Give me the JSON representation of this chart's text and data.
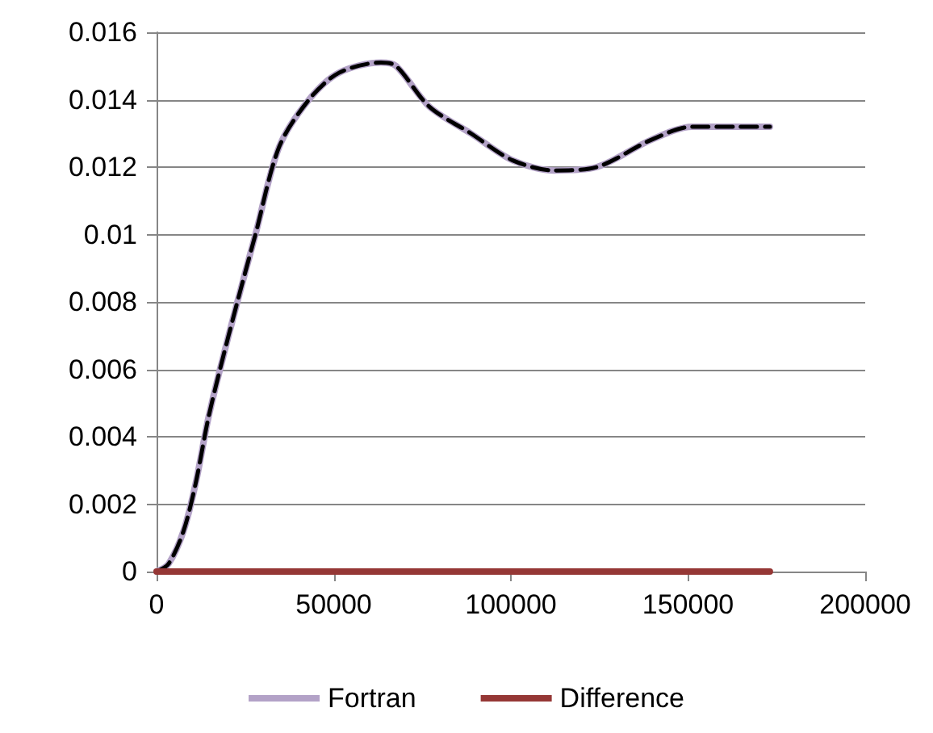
{
  "chart_data": {
    "type": "line",
    "x": [
      0,
      3400,
      7600,
      11000,
      14500,
      17900,
      22800,
      27900,
      34600,
      43000,
      51500,
      63300,
      67600,
      76900,
      88700,
      100500,
      112300,
      124200,
      139400,
      151200,
      163000,
      173100
    ],
    "series": [
      {
        "name": "Fortran",
        "color": "#b3a2c7",
        "line_style": "solid",
        "values": [
          0,
          0.00023,
          0.0012,
          0.0026,
          0.0045,
          0.006,
          0.008,
          0.01,
          0.0126,
          0.014,
          0.0148,
          0.0151,
          0.015,
          0.0138,
          0.013,
          0.0122,
          0.0119,
          0.012,
          0.0128,
          0.0132,
          0.0132,
          0.0132
        ]
      },
      {
        "color": "#000000",
        "line_style": "dashed",
        "values": [
          0,
          0.00023,
          0.0012,
          0.0026,
          0.0045,
          0.006,
          0.008,
          0.01,
          0.0126,
          0.014,
          0.0148,
          0.0151,
          0.015,
          0.0138,
          0.013,
          0.0122,
          0.0119,
          0.012,
          0.0128,
          0.0132,
          0.0132,
          0.0132
        ]
      },
      {
        "name": "Difference",
        "color": "#953735",
        "line_style": "solid",
        "values": [
          0,
          0,
          0,
          0,
          0,
          0,
          0,
          0,
          0,
          0,
          0,
          0,
          0,
          0,
          0,
          0,
          0,
          0,
          0,
          0,
          0,
          0
        ]
      }
    ],
    "xlim": [
      0,
      200000
    ],
    "xticks": [
      0,
      50000,
      100000,
      150000,
      200000
    ],
    "ylim": [
      0,
      0.016
    ],
    "yticks": [
      0,
      0.002,
      0.004,
      0.006,
      0.008,
      0.01,
      0.012,
      0.014,
      0.016
    ],
    "grid": "y",
    "legend": "bottom",
    "marker": "none"
  }
}
